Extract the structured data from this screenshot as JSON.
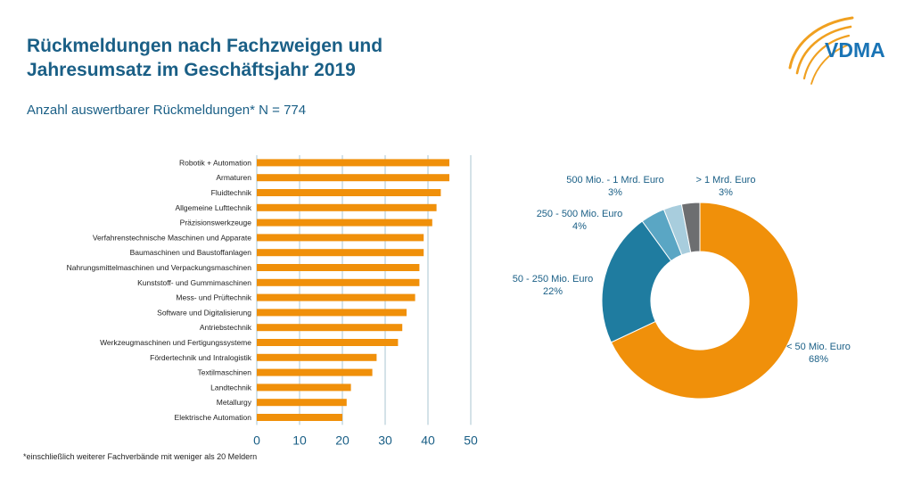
{
  "header": {
    "title_line1": "Rückmeldungen nach Fachzweigen und",
    "title_line2": "Jahresumsatz im Geschäftsjahr 2019",
    "subtitle": "Anzahl auswertbarer Rückmeldungen* N = 774",
    "logo_text": "VDMA"
  },
  "footnote": "*einschließlich weiterer Fachverbände mit weniger als 20 Meldern",
  "colors": {
    "title": "#1a5f86",
    "bar": "#f0900a",
    "grid": "#a9c4d2",
    "pie": [
      "#f0900a",
      "#1f7ca0",
      "#5aa6c4",
      "#a8cddd",
      "#6d6e70"
    ]
  },
  "chart_data": [
    {
      "type": "bar",
      "orientation": "horizontal",
      "categories": [
        "Robotik + Automation",
        "Armaturen",
        "Fluidtechnik",
        "Allgemeine Lufttechnik",
        "Präzisionswerkzeuge",
        "Verfahrenstechnische Maschinen und Apparate",
        "Baumaschinen und Baustoffanlagen",
        "Nahrungsmittelmaschinen und Verpackungsmaschinen",
        "Kunststoff- und Gummimaschinen",
        "Mess- und Prüftechnik",
        "Software und Digitalisierung",
        "Antriebstechnik",
        "Werkzeugmaschinen und Fertigungssysteme",
        "Fördertechnik und Intralogistik",
        "Textilmaschinen",
        "Landtechnik",
        "Metallurgy",
        "Elektrische Automation"
      ],
      "values": [
        45,
        45,
        43,
        42,
        41,
        39,
        39,
        38,
        38,
        37,
        35,
        34,
        33,
        28,
        27,
        22,
        21,
        20
      ],
      "xlim": [
        0,
        50
      ],
      "xticks": [
        "0",
        "10",
        "20",
        "30",
        "40",
        "50"
      ],
      "grid": true
    },
    {
      "type": "pie",
      "style": "donut",
      "slices": [
        {
          "label": "< 50 Mio. Euro",
          "pct_text": "68%",
          "value": 68
        },
        {
          "label": "50 - 250 Mio. Euro",
          "pct_text": "22%",
          "value": 22
        },
        {
          "label": "250 - 500 Mio. Euro",
          "pct_text": "4%",
          "value": 4
        },
        {
          "label": "500 Mio. - 1 Mrd. Euro",
          "pct_text": "3%",
          "value": 3
        },
        {
          "label": "> 1 Mrd. Euro",
          "pct_text": "3%",
          "value": 3
        }
      ]
    }
  ]
}
